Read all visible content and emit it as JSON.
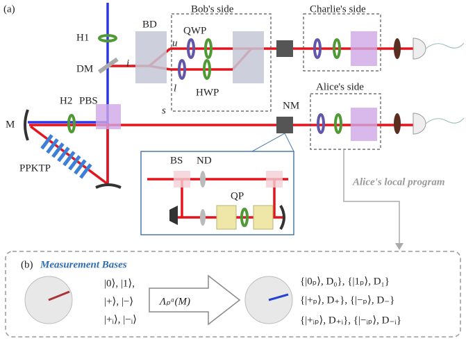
{
  "panel_a": {
    "label": "(a)",
    "regions": {
      "bob": "Bob's side",
      "charlie": "Charlie's side",
      "alice": "Alice's side"
    },
    "components": {
      "bd": "BD",
      "qwp": "QWP",
      "hwp": "HWP",
      "h1": "H1",
      "dm": "DM",
      "h2": "H2",
      "pbs": "PBS",
      "nm": "NM",
      "m": "M",
      "ppktp": "PPKTP"
    },
    "modes": {
      "u": "u",
      "i": "i",
      "l": "l",
      "s": "s"
    },
    "inset": {
      "bs": "BS",
      "nd": "ND",
      "qp": "QP"
    },
    "program_label": "Alice's local program"
  },
  "panel_b": {
    "label": "(b)",
    "title": "Measurement Bases",
    "input_bases": [
      "|0⟩, |1⟩,",
      "|+⟩, |−⟩",
      "|+ᵢ⟩, |−ᵢ⟩"
    ],
    "map": "Λₚᵃ(M)",
    "output_bases": [
      "{|0ₚ⟩, D₀}, {|1ₚ⟩, D₁}",
      "{|+ₚ⟩, D₊}, {|−ₚ⟩, D₋}",
      "{|+ᵢₚ⟩, D₊ᵢ}, {|−ᵢₚ⟩, D₋ᵢ}"
    ]
  }
}
